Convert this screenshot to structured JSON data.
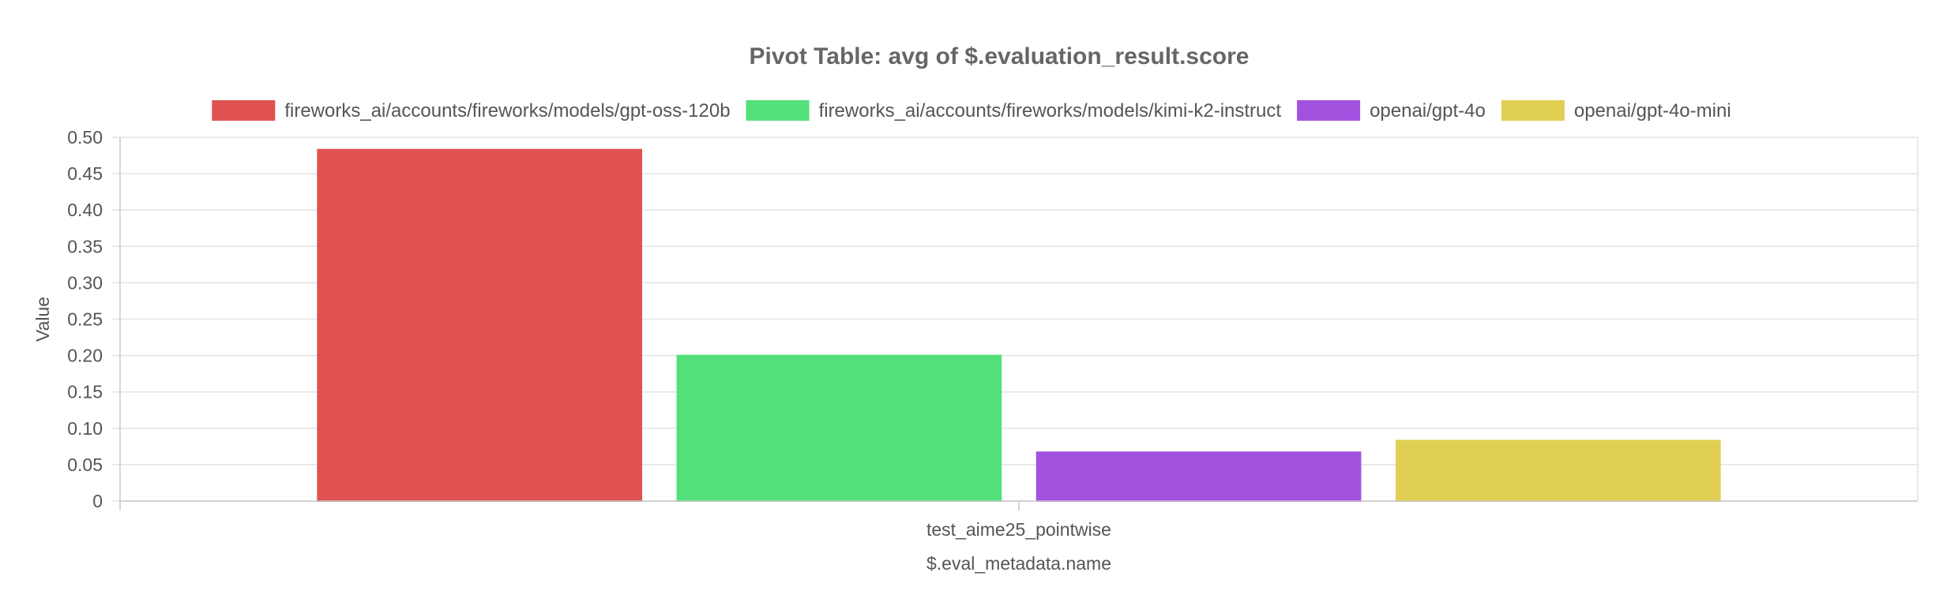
{
  "chart_data": {
    "type": "bar",
    "title": "Pivot Table: avg of $.evaluation_result.score",
    "xlabel": "$.eval_metadata.name",
    "ylabel": "Value",
    "categories": [
      "test_aime25_pointwise"
    ],
    "ylim": [
      0,
      0.5
    ],
    "yticks": [
      "0",
      "0.05",
      "0.10",
      "0.15",
      "0.20",
      "0.25",
      "0.30",
      "0.35",
      "0.40",
      "0.45",
      "0.50"
    ],
    "grid": true,
    "legend_position": "top",
    "series": [
      {
        "name": "fireworks_ai/accounts/fireworks/models/gpt-oss-120b",
        "values": [
          0.483
        ],
        "color": "#e05252"
      },
      {
        "name": "fireworks_ai/accounts/fireworks/models/kimi-k2-instruct",
        "values": [
          0.2
        ],
        "color": "#52e07a"
      },
      {
        "name": "openai/gpt-4o",
        "values": [
          0.067
        ],
        "color": "#a352e0"
      },
      {
        "name": "openai/gpt-4o-mini",
        "values": [
          0.083
        ],
        "color": "#e0cf52"
      }
    ]
  }
}
